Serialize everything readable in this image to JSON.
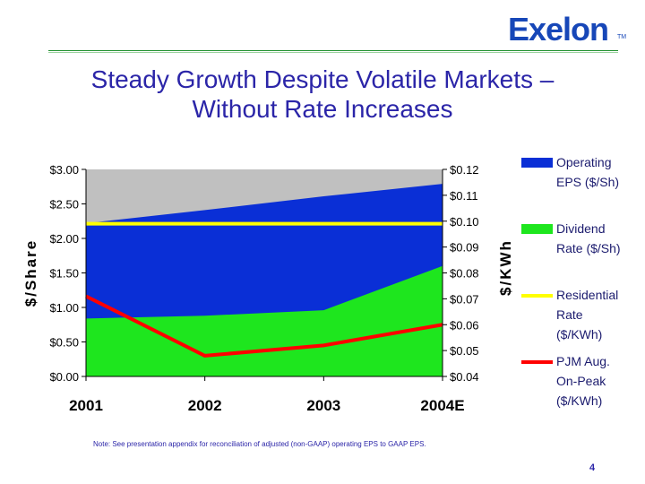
{
  "header": {
    "logo_text": "Exelon",
    "logo_tm": "TM",
    "title_line1": "Steady Growth Despite Volatile Markets –",
    "title_line2": "Without Rate Increases"
  },
  "footer": {
    "note": "Note: See presentation appendix for reconciliation of adjusted (non-GAAP) operating EPS to GAAP EPS.",
    "page_number": "4"
  },
  "chart_data": {
    "type": "area",
    "categories": [
      "2001",
      "2002",
      "2003",
      "2004E"
    ],
    "ylabel_left": "$/Share",
    "ylabel_right": "$/KWh",
    "ylim_left": [
      0,
      3.0
    ],
    "ylim_right": [
      0.04,
      0.12
    ],
    "yticks_left": [
      "$0.00",
      "$0.50",
      "$1.00",
      "$1.50",
      "$2.00",
      "$2.50",
      "$3.00"
    ],
    "yticks_right": [
      "$0.04",
      "$0.05",
      "$0.06",
      "$0.07",
      "$0.08",
      "$0.09",
      "$0.10",
      "$0.11",
      "$0.12"
    ],
    "grid": false,
    "plot_background": "#c0c0c0",
    "legend_position": "right",
    "series": [
      {
        "name": "Operating EPS ($/Sh)",
        "axis": "left",
        "kind": "area",
        "color": "#0a2fd6",
        "values": [
          2.22,
          2.41,
          2.61,
          2.79
        ]
      },
      {
        "name": "Dividend Rate ($/Sh)",
        "axis": "left",
        "kind": "area",
        "color": "#1ee61e",
        "values": [
          0.84,
          0.88,
          0.96,
          1.6
        ]
      },
      {
        "name": "Residential Rate ($/KWh)",
        "axis": "right",
        "kind": "line",
        "color": "#ffff00",
        "values": [
          0.099,
          0.099,
          0.099,
          0.099
        ]
      },
      {
        "name": "PJM Aug. On-Peak ($/KWh)",
        "axis": "right",
        "kind": "line",
        "color": "#ff0000",
        "values": [
          0.071,
          0.048,
          0.052,
          0.06
        ]
      }
    ],
    "legend": [
      {
        "lines": [
          "Operating",
          "EPS ($/Sh)"
        ],
        "color": "#0a2fd6",
        "swatch": "box"
      },
      {
        "lines": [
          "Dividend",
          "Rate ($/Sh)"
        ],
        "color": "#1ee61e",
        "swatch": "box"
      },
      {
        "lines": [
          "Residential",
          "Rate",
          "($/KWh)"
        ],
        "color": "#ffff00",
        "swatch": "line"
      },
      {
        "lines": [
          "PJM Aug.",
          "On-Peak",
          "($/KWh)"
        ],
        "color": "#ff0000",
        "swatch": "line"
      }
    ]
  }
}
